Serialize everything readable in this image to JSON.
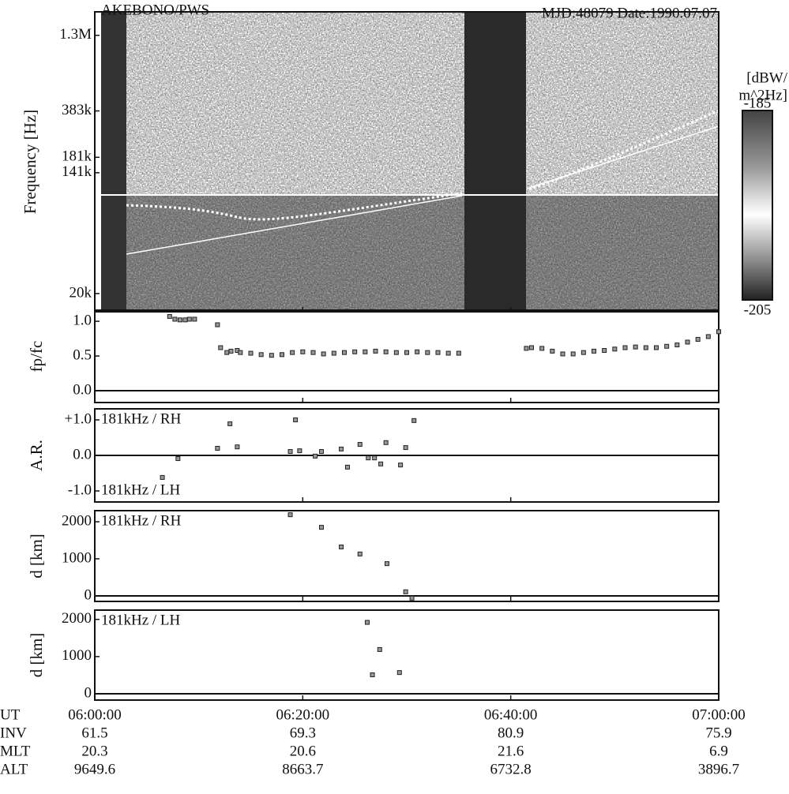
{
  "title": "AKEBONO/PWS",
  "subtitle": "MJD:48079 Date:1990.07.07",
  "time_axis": {
    "label": "UT",
    "xlim": [
      0,
      60
    ],
    "xticks": [
      {
        "value": 0,
        "label": "06:00:00"
      },
      {
        "value": 20,
        "label": "06:20:00"
      },
      {
        "value": 40,
        "label": "06:40:00"
      },
      {
        "value": 60,
        "label": "07:00:00"
      }
    ],
    "rows": [
      {
        "label": "INV",
        "values": [
          61.5,
          69.3,
          80.9,
          75.9
        ]
      },
      {
        "label": "MLT",
        "values": [
          20.3,
          20.6,
          21.6,
          6.9
        ]
      },
      {
        "label": "ALT",
        "values": [
          9649.6,
          8663.7,
          6732.8,
          3896.7
        ]
      }
    ]
  },
  "chart_data": [
    {
      "type": "spectrogram",
      "ylabel": "Frequency [Hz]",
      "log_scale": true,
      "ylim": [
        14900,
        1900000
      ],
      "yticks": [
        {
          "value": 1300000,
          "label": "1.3M"
        },
        {
          "value": 383000,
          "label": "383k"
        },
        {
          "value": 181000,
          "label": "181k"
        },
        {
          "value": 141000,
          "label": "141k"
        },
        {
          "value": 20000,
          "label": "20k"
        }
      ],
      "colorbar": {
        "label": [
          "[dBW/",
          "m^2Hz]"
        ],
        "clim": [
          -205,
          -185
        ],
        "ticks": [
          -185,
          -205
        ]
      }
    },
    {
      "type": "scatter",
      "ylabel": "fp/fc",
      "ylim": [
        -0.17,
        1.16
      ],
      "yticks": [
        {
          "value": 1.0,
          "label": "1.0"
        },
        {
          "value": 0.5,
          "label": "0.5"
        },
        {
          "value": 0.0,
          "label": "0.0"
        }
      ],
      "x": [
        7.2,
        7.7,
        8.2,
        8.7,
        9.1,
        9.6,
        11.8,
        12.1,
        12.7,
        13.1,
        13.7,
        14,
        15,
        16,
        17,
        18,
        19,
        20,
        21,
        22,
        23,
        24,
        25,
        26,
        27,
        28,
        29,
        30,
        31,
        32,
        33,
        34,
        35,
        41.5,
        42,
        43,
        44,
        45,
        46,
        47,
        48,
        49,
        50,
        51,
        52,
        53,
        54,
        55,
        56,
        57,
        58,
        59,
        60
      ],
      "values": [
        1.07,
        1.03,
        1.02,
        1.02,
        1.03,
        1.03,
        0.95,
        0.62,
        0.55,
        0.57,
        0.58,
        0.55,
        0.54,
        0.52,
        0.51,
        0.52,
        0.55,
        0.56,
        0.55,
        0.53,
        0.54,
        0.55,
        0.56,
        0.56,
        0.57,
        0.56,
        0.55,
        0.55,
        0.56,
        0.55,
        0.55,
        0.54,
        0.54,
        0.61,
        0.62,
        0.61,
        0.57,
        0.53,
        0.53,
        0.55,
        0.57,
        0.58,
        0.6,
        0.62,
        0.63,
        0.62,
        0.62,
        0.64,
        0.66,
        0.7,
        0.74,
        0.78,
        0.85
      ]
    },
    {
      "type": "scatter",
      "ylabel": "A.R.",
      "ylim": [
        -1.31,
        1.31
      ],
      "yticks": [
        {
          "value": 1.0,
          "label": "+1.0"
        },
        {
          "value": 0.0,
          "label": "0.0"
        },
        {
          "value": -1.0,
          "label": "-1.0"
        }
      ],
      "annotations": [
        "181kHz / RH",
        "181kHz / LH"
      ],
      "x": [
        6.5,
        8.0,
        11.8,
        13.0,
        13.7,
        18.8,
        19.3,
        19.7,
        21.2,
        21.8,
        23.7,
        24.3,
        25.5,
        26.3,
        26.9,
        27.5,
        28.0,
        29.4,
        29.9,
        30.7
      ],
      "values": [
        -0.62,
        -0.09,
        0.2,
        0.89,
        0.24,
        0.11,
        1.0,
        0.13,
        -0.02,
        0.11,
        0.18,
        -0.33,
        0.31,
        -0.07,
        -0.07,
        -0.24,
        0.36,
        -0.27,
        0.22,
        0.98
      ]
    },
    {
      "type": "scatter",
      "ylabel": "d [km]",
      "ylim": [
        -150,
        2300
      ],
      "yticks": [
        2000,
        1000,
        0
      ],
      "annotations": [
        "181kHz / RH"
      ],
      "x": [
        18.8,
        21.8,
        23.7,
        25.5,
        28.1,
        29.9,
        30.5
      ],
      "values": [
        2190,
        1850,
        1320,
        1130,
        870,
        110,
        -60
      ]
    },
    {
      "type": "scatter",
      "ylabel": "d [km]",
      "ylim": [
        -170,
        2250
      ],
      "yticks": [
        2000,
        1000,
        0
      ],
      "annotations": [
        "181kHz / LH"
      ],
      "x": [
        26.2,
        27.4,
        26.7,
        29.3
      ],
      "values": [
        1920,
        1190,
        510,
        570
      ]
    }
  ]
}
